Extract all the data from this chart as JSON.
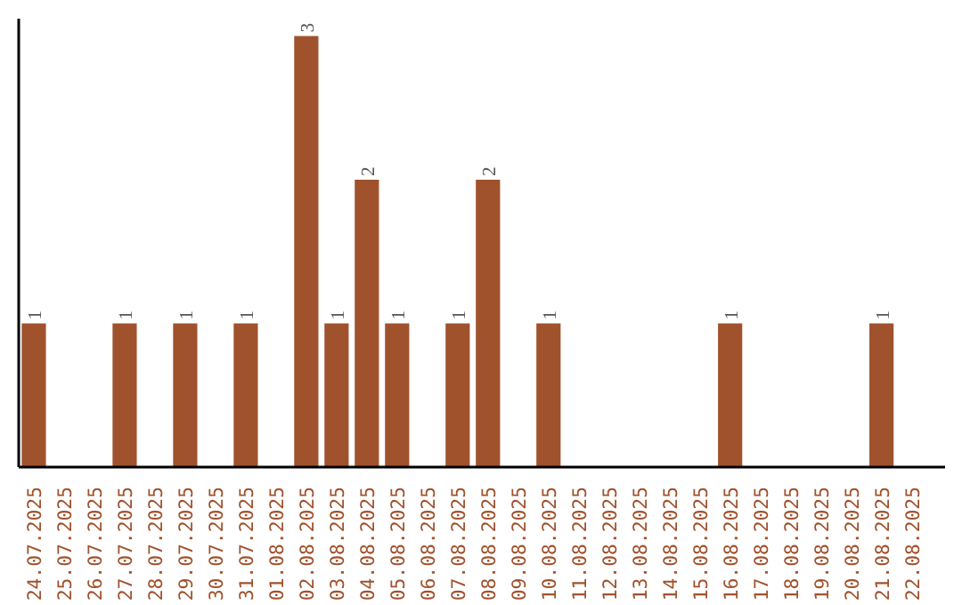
{
  "chart_data": {
    "type": "bar",
    "categories": [
      "24.07.2025",
      "25.07.2025",
      "26.07.2025",
      "27.07.2025",
      "28.07.2025",
      "29.07.2025",
      "30.07.2025",
      "31.07.2025",
      "01.08.2025",
      "02.08.2025",
      "03.08.2025",
      "04.08.2025",
      "05.08.2025",
      "06.08.2025",
      "07.08.2025",
      "08.08.2025",
      "09.08.2025",
      "10.08.2025",
      "11.08.2025",
      "12.08.2025",
      "13.08.2025",
      "14.08.2025",
      "15.08.2025",
      "16.08.2025",
      "17.08.2025",
      "18.08.2025",
      "19.08.2025",
      "20.08.2025",
      "21.08.2025",
      "22.08.2025"
    ],
    "values": [
      1,
      0,
      0,
      1,
      0,
      1,
      0,
      1,
      0,
      3,
      1,
      2,
      1,
      0,
      1,
      2,
      0,
      1,
      0,
      0,
      0,
      0,
      0,
      1,
      0,
      0,
      0,
      0,
      1,
      0
    ],
    "value_labels": [
      "1",
      null,
      null,
      "1",
      null,
      "1",
      null,
      "1",
      null,
      "3",
      "1",
      "2",
      "1",
      null,
      "1",
      "2",
      null,
      "1",
      null,
      null,
      null,
      null,
      null,
      "1",
      null,
      null,
      null,
      null,
      "1",
      null
    ],
    "color": "#a0522d",
    "tick_labels": "x",
    "grid": false
  }
}
